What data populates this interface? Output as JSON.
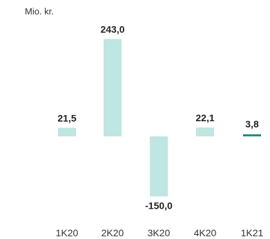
{
  "chart_data": {
    "type": "bar",
    "unit_label": "Mio. kr.",
    "categories": [
      "1K20",
      "2K20",
      "3K20",
      "4K20",
      "1K21"
    ],
    "values": [
      21.5,
      243.0,
      -150.0,
      22.1,
      3.8
    ],
    "value_labels": [
      "21,5",
      "243,0",
      "-150,0",
      "22,1",
      "3,8"
    ],
    "highlight_index": 4,
    "colors": {
      "bar": "#bfe6e1",
      "highlight": "#17917d"
    }
  }
}
